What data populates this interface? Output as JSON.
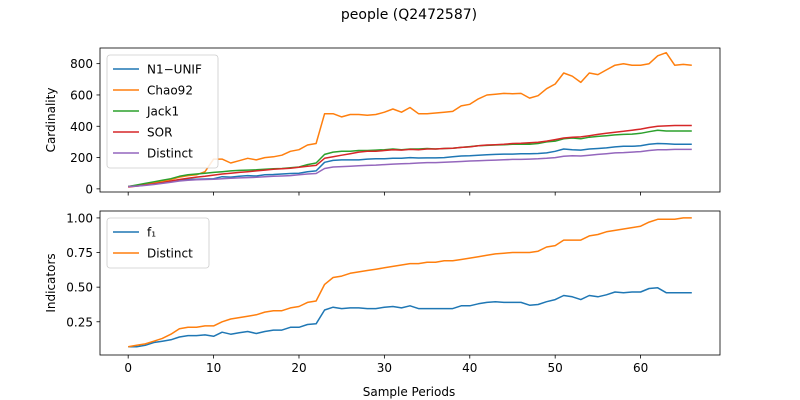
{
  "figure": {
    "title": "people (Q2472587)",
    "xlabel": "Sample Periods"
  },
  "chart_data": [
    {
      "type": "line",
      "ylabel": "Cardinality",
      "xlim": [
        -3.3,
        69.3
      ],
      "ylim": [
        -20,
        900
      ],
      "xticks": [
        "0",
        "10",
        "20",
        "30",
        "40",
        "50",
        "60"
      ],
      "xtick_values": [
        0,
        10,
        20,
        30,
        40,
        50,
        60
      ],
      "show_xtick_labels": false,
      "yticks": [
        "0",
        "200",
        "400",
        "600",
        "800"
      ],
      "ytick_values": [
        0,
        200,
        400,
        600,
        800
      ],
      "grid": false,
      "legend_position": "top-left",
      "x": [
        0,
        1,
        2,
        3,
        4,
        5,
        6,
        7,
        8,
        9,
        10,
        11,
        12,
        13,
        14,
        15,
        16,
        17,
        18,
        19,
        20,
        21,
        22,
        23,
        24,
        25,
        26,
        27,
        28,
        29,
        30,
        31,
        32,
        33,
        34,
        35,
        36,
        37,
        38,
        39,
        40,
        41,
        42,
        43,
        44,
        45,
        46,
        47,
        48,
        49,
        50,
        51,
        52,
        53,
        54,
        55,
        56,
        57,
        58,
        59,
        60,
        61,
        62,
        63,
        64,
        65,
        66
      ],
      "series": [
        {
          "name": "N1−UNIF",
          "color": "#1f77b4",
          "values": [
            15,
            20,
            25,
            32,
            40,
            48,
            55,
            60,
            62,
            63,
            65,
            78,
            75,
            80,
            85,
            82,
            90,
            92,
            95,
            98,
            100,
            110,
            115,
            170,
            182,
            185,
            185,
            185,
            190,
            192,
            193,
            195,
            195,
            200,
            197,
            198,
            198,
            200,
            205,
            210,
            212,
            215,
            218,
            220,
            222,
            222,
            224,
            225,
            226,
            230,
            240,
            255,
            250,
            248,
            255,
            258,
            262,
            268,
            272,
            272,
            275,
            285,
            290,
            288,
            285,
            285,
            285
          ]
        },
        {
          "name": "Chao92",
          "color": "#ff7f0e",
          "values": [
            15,
            22,
            28,
            38,
            48,
            60,
            75,
            85,
            90,
            110,
            190,
            190,
            165,
            180,
            195,
            185,
            200,
            205,
            215,
            240,
            250,
            280,
            290,
            480,
            480,
            460,
            475,
            475,
            470,
            475,
            490,
            510,
            490,
            520,
            480,
            480,
            485,
            490,
            495,
            530,
            540,
            575,
            600,
            605,
            610,
            608,
            610,
            580,
            595,
            640,
            670,
            740,
            720,
            680,
            740,
            730,
            760,
            790,
            800,
            790,
            790,
            800,
            850,
            870,
            790,
            795,
            790
          ]
        },
        {
          "name": "Jack1",
          "color": "#2ca02c",
          "values": [
            15,
            25,
            35,
            45,
            55,
            65,
            80,
            90,
            95,
            100,
            105,
            110,
            115,
            118,
            120,
            122,
            125,
            128,
            130,
            135,
            140,
            155,
            165,
            220,
            235,
            240,
            240,
            245,
            245,
            248,
            250,
            255,
            250,
            255,
            255,
            258,
            255,
            258,
            260,
            265,
            270,
            275,
            278,
            280,
            282,
            285,
            285,
            285,
            290,
            300,
            305,
            320,
            325,
            320,
            330,
            335,
            340,
            345,
            348,
            350,
            355,
            365,
            375,
            370,
            370,
            370,
            370
          ]
        },
        {
          "name": "SOR",
          "color": "#d62728",
          "values": [
            12,
            18,
            25,
            32,
            40,
            50,
            60,
            68,
            75,
            80,
            88,
            95,
            100,
            105,
            110,
            115,
            120,
            125,
            128,
            132,
            138,
            145,
            150,
            195,
            205,
            215,
            225,
            235,
            240,
            240,
            245,
            250,
            248,
            252,
            250,
            255,
            255,
            258,
            260,
            265,
            268,
            275,
            280,
            282,
            285,
            290,
            292,
            295,
            298,
            305,
            315,
            325,
            330,
            332,
            340,
            348,
            355,
            362,
            368,
            375,
            382,
            392,
            400,
            402,
            405,
            405,
            405
          ]
        },
        {
          "name": "Distinct",
          "color": "#9467bd",
          "values": [
            15,
            18,
            22,
            28,
            35,
            42,
            50,
            55,
            58,
            60,
            62,
            65,
            68,
            70,
            72,
            74,
            78,
            80,
            82,
            85,
            90,
            95,
            98,
            130,
            140,
            142,
            145,
            148,
            150,
            152,
            155,
            158,
            160,
            162,
            165,
            168,
            168,
            170,
            172,
            175,
            178,
            180,
            182,
            184,
            186,
            188,
            188,
            190,
            192,
            195,
            200,
            208,
            212,
            210,
            215,
            220,
            225,
            230,
            232,
            235,
            238,
            245,
            250,
            250,
            252,
            252,
            252
          ]
        }
      ]
    },
    {
      "type": "line",
      "ylabel": "Indicators",
      "xlim": [
        -3.3,
        69.3
      ],
      "ylim": [
        0.01,
        1.05
      ],
      "xticks": [
        "0",
        "10",
        "20",
        "30",
        "40",
        "50",
        "60"
      ],
      "xtick_values": [
        0,
        10,
        20,
        30,
        40,
        50,
        60
      ],
      "show_xtick_labels": true,
      "yticks": [
        "0.25",
        "0.50",
        "0.75",
        "1.00"
      ],
      "ytick_values": [
        0.25,
        0.5,
        0.75,
        1.0
      ],
      "grid": false,
      "legend_position": "top-left",
      "x": [
        0,
        1,
        2,
        3,
        4,
        5,
        6,
        7,
        8,
        9,
        10,
        11,
        12,
        13,
        14,
        15,
        16,
        17,
        18,
        19,
        20,
        21,
        22,
        23,
        24,
        25,
        26,
        27,
        28,
        29,
        30,
        31,
        32,
        33,
        34,
        35,
        36,
        37,
        38,
        39,
        40,
        41,
        42,
        43,
        44,
        45,
        46,
        47,
        48,
        49,
        50,
        51,
        52,
        53,
        54,
        55,
        56,
        57,
        58,
        59,
        60,
        61,
        62,
        63,
        64,
        65,
        66
      ],
      "series": [
        {
          "name": "f₁",
          "color": "#1f77b4",
          "values": [
            0.07,
            0.07,
            0.08,
            0.1,
            0.11,
            0.12,
            0.14,
            0.15,
            0.15,
            0.155,
            0.145,
            0.175,
            0.16,
            0.17,
            0.18,
            0.165,
            0.18,
            0.19,
            0.19,
            0.21,
            0.21,
            0.23,
            0.235,
            0.335,
            0.355,
            0.345,
            0.35,
            0.35,
            0.345,
            0.345,
            0.355,
            0.36,
            0.35,
            0.365,
            0.345,
            0.345,
            0.345,
            0.345,
            0.345,
            0.365,
            0.365,
            0.38,
            0.39,
            0.395,
            0.39,
            0.39,
            0.39,
            0.37,
            0.375,
            0.395,
            0.41,
            0.44,
            0.43,
            0.41,
            0.44,
            0.43,
            0.445,
            0.465,
            0.46,
            0.465,
            0.465,
            0.49,
            0.495,
            0.46,
            0.46,
            0.46,
            0.46
          ]
        },
        {
          "name": "Distinct",
          "color": "#ff7f0e",
          "values": [
            0.07,
            0.08,
            0.09,
            0.11,
            0.13,
            0.16,
            0.2,
            0.21,
            0.21,
            0.22,
            0.22,
            0.25,
            0.27,
            0.28,
            0.29,
            0.3,
            0.32,
            0.33,
            0.33,
            0.35,
            0.36,
            0.39,
            0.4,
            0.52,
            0.57,
            0.58,
            0.6,
            0.61,
            0.62,
            0.63,
            0.64,
            0.65,
            0.66,
            0.67,
            0.67,
            0.68,
            0.68,
            0.69,
            0.69,
            0.7,
            0.71,
            0.72,
            0.73,
            0.74,
            0.745,
            0.75,
            0.75,
            0.75,
            0.76,
            0.79,
            0.8,
            0.84,
            0.84,
            0.84,
            0.87,
            0.88,
            0.9,
            0.91,
            0.92,
            0.93,
            0.94,
            0.97,
            0.99,
            0.99,
            0.99,
            1.0,
            1.0
          ]
        }
      ]
    }
  ]
}
